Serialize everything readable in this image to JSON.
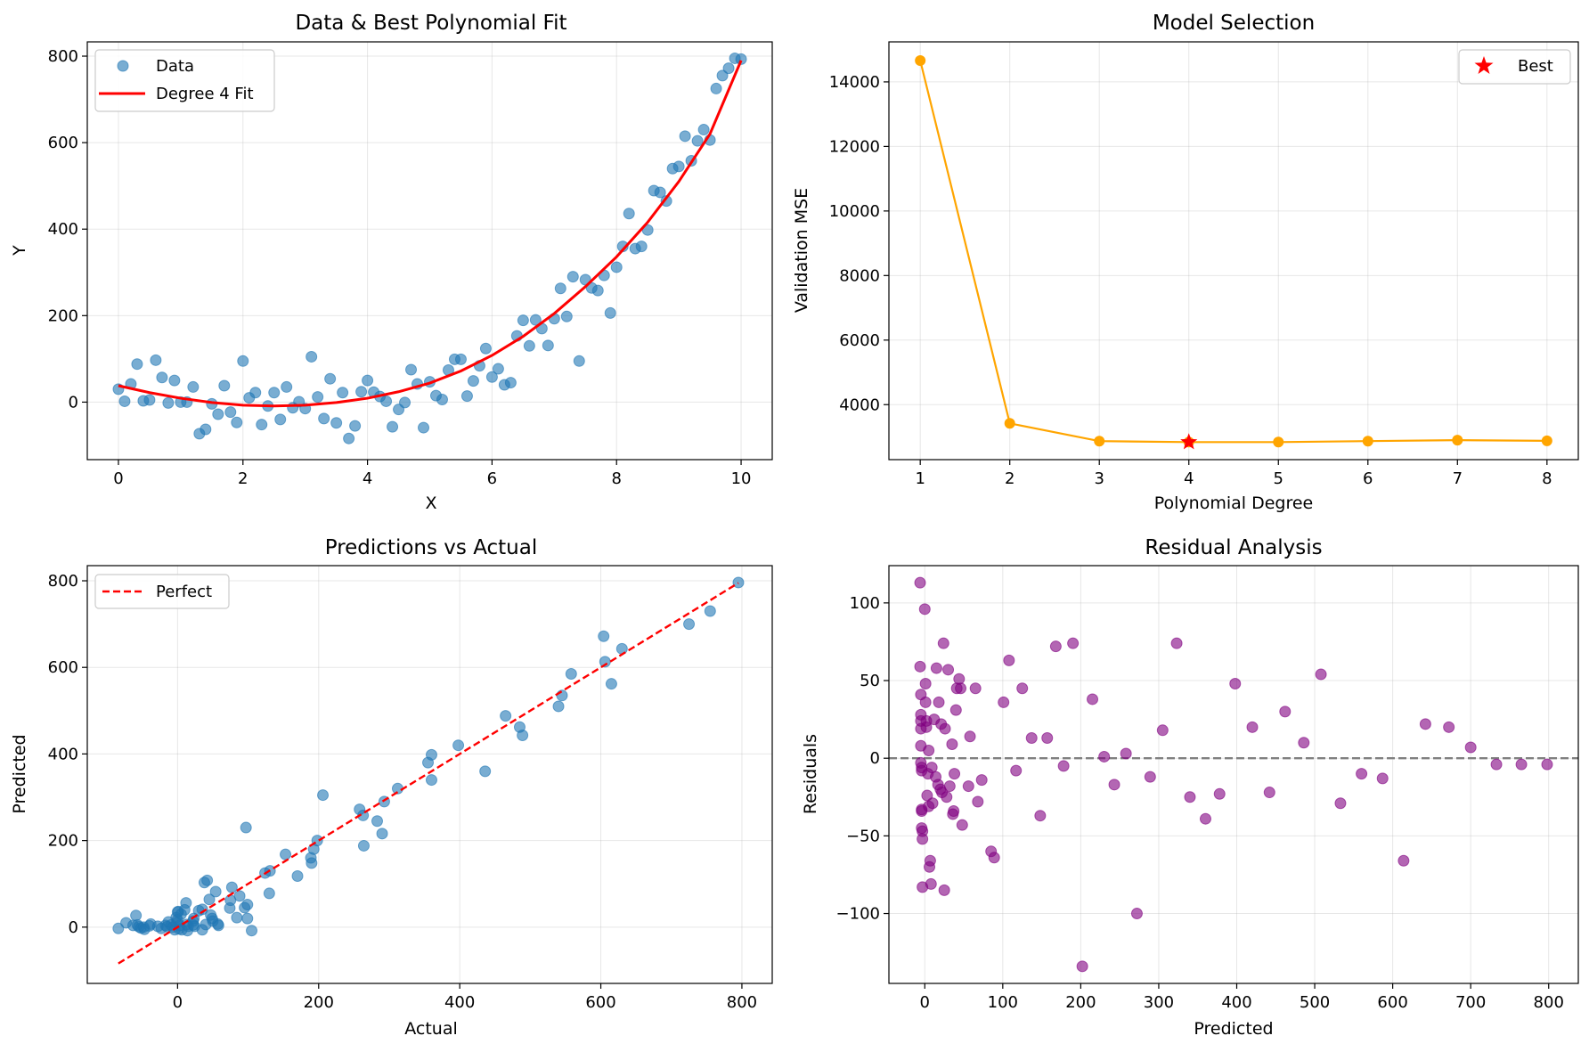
{
  "chart_data": [
    {
      "type": "scatter",
      "title": "Data & Best Polynomial Fit",
      "xlabel": "X",
      "ylabel": "Y",
      "xlim": [
        -0.5,
        10.5
      ],
      "ylim": [
        -133,
        833
      ],
      "xticks": [
        0,
        2,
        4,
        6,
        8,
        10
      ],
      "yticks": [
        0,
        200,
        400,
        600,
        800
      ],
      "grid": true,
      "legend": "upper-left",
      "series": [
        {
          "name": "Data",
          "type": "scatter",
          "color": "#1f77b4",
          "x": [
            0,
            0.1,
            0.2,
            0.3,
            0.4,
            0.5,
            0.6,
            0.7,
            0.8,
            0.9,
            1.0,
            1.1,
            1.2,
            1.3,
            1.4,
            1.5,
            1.6,
            1.7,
            1.8,
            1.9,
            2.0,
            2.1,
            2.2,
            2.3,
            2.4,
            2.5,
            2.6,
            2.7,
            2.8,
            2.9,
            3.0,
            3.1,
            3.2,
            3.3,
            3.4,
            3.5,
            3.6,
            3.7,
            3.8,
            3.9,
            4.0,
            4.1,
            4.2,
            4.3,
            4.4,
            4.5,
            4.6,
            4.7,
            4.8,
            4.9,
            5.0,
            5.1,
            5.2,
            5.3,
            5.4,
            5.5,
            5.6,
            5.7,
            5.8,
            5.9,
            6.0,
            6.1,
            6.2,
            6.3,
            6.4,
            6.5,
            6.6,
            6.7,
            6.8,
            6.9,
            7.0,
            7.1,
            7.2,
            7.3,
            7.4,
            7.5,
            7.6,
            7.7,
            7.8,
            7.9,
            8.0,
            8.1,
            8.2,
            8.3,
            8.4,
            8.5,
            8.6,
            8.7,
            8.8,
            8.9,
            9.0,
            9.1,
            9.2,
            9.3,
            9.4,
            9.5,
            9.6,
            9.7,
            9.8,
            9.9,
            10.0
          ],
          "y": [
            30,
            2,
            42,
            88,
            3,
            5,
            97,
            57,
            -2,
            50,
            0,
            0,
            35,
            -73,
            -63,
            -4,
            -28,
            38,
            -23,
            -47,
            95,
            10,
            22,
            -52,
            -9,
            22,
            -40,
            35,
            -13,
            1,
            -15,
            105,
            12,
            -38,
            54,
            -48,
            22,
            -84,
            -55,
            24,
            50,
            23,
            13,
            2,
            -57,
            -17,
            -1,
            75,
            42,
            -59,
            47,
            15,
            6,
            74,
            99,
            99,
            14,
            49,
            84,
            124,
            58,
            77,
            40,
            45,
            153,
            189,
            130,
            190,
            170,
            131,
            193,
            263,
            198,
            290,
            95,
            283,
            264,
            258,
            293,
            206,
            312,
            360,
            436,
            355,
            360,
            398,
            489,
            485,
            465,
            540,
            545,
            615,
            558,
            604,
            630,
            606,
            725,
            755,
            772,
            795,
            793
          ]
        },
        {
          "name": "Degree 4 Fit",
          "type": "line",
          "color": "#ff0000",
          "x": [
            0,
            0.5,
            1,
            1.5,
            2,
            2.5,
            3,
            3.5,
            4,
            4.5,
            5,
            5.5,
            6,
            6.5,
            7,
            7.5,
            8,
            8.5,
            9,
            9.5,
            10
          ],
          "y": [
            38,
            22,
            9,
            -1,
            -7,
            -9,
            -7,
            -1,
            9,
            24,
            44,
            72,
            108,
            152,
            205,
            267,
            336,
            416,
            510,
            620,
            790
          ]
        }
      ]
    },
    {
      "type": "line",
      "title": "Model Selection",
      "xlabel": "Polynomial Degree",
      "ylabel": "Validation MSE",
      "xlim": [
        0.65,
        8.35
      ],
      "ylim": [
        2296,
        15240
      ],
      "xticks": [
        1,
        2,
        3,
        4,
        5,
        6,
        7,
        8
      ],
      "yticks": [
        4000,
        6000,
        8000,
        10000,
        12000,
        14000
      ],
      "grid": true,
      "legend": "upper-right",
      "series": [
        {
          "name": "",
          "type": "line",
          "color": "#ffa500",
          "x": [
            1,
            2,
            3,
            4,
            5,
            6,
            7,
            8
          ],
          "y": [
            14660,
            3420,
            2870,
            2840,
            2840,
            2870,
            2900,
            2880
          ]
        },
        {
          "name": "Best",
          "type": "star",
          "color": "#ff0000",
          "x": [
            4
          ],
          "y": [
            2840
          ]
        }
      ]
    },
    {
      "type": "scatter",
      "title": "Predictions vs Actual",
      "xlabel": "Actual",
      "ylabel": "Predicted",
      "xlim": [
        -128,
        843
      ],
      "ylim": [
        -130,
        835
      ],
      "xticks": [
        0,
        200,
        400,
        600,
        800
      ],
      "yticks": [
        0,
        200,
        400,
        600,
        800
      ],
      "grid": true,
      "legend": "upper-left",
      "series": [
        {
          "name": "",
          "type": "scatter",
          "color": "#1f77b4",
          "x": [
            -84,
            -73,
            -63,
            -59,
            -57,
            -55,
            -52,
            -48,
            -47,
            -40,
            -38,
            -28,
            -23,
            -17,
            -15,
            -13,
            -9,
            -7,
            -4,
            -2,
            -1,
            0,
            0,
            1,
            2,
            3,
            5,
            6,
            10,
            12,
            13,
            14,
            15,
            22,
            22,
            23,
            24,
            30,
            35,
            35,
            38,
            40,
            42,
            45,
            47,
            49,
            50,
            54,
            57,
            58,
            74,
            75,
            77,
            84,
            88,
            95,
            97,
            99,
            99,
            105,
            124,
            130,
            131,
            153,
            170,
            189,
            190,
            193,
            198,
            206,
            258,
            263,
            264,
            283,
            290,
            293,
            312,
            355,
            360,
            360,
            398,
            436,
            465,
            485,
            489,
            540,
            545,
            558,
            604,
            606,
            615,
            630,
            725,
            755,
            795
          ],
          "y": [
            -3,
            10,
            4,
            27,
            5,
            1,
            -2,
            0,
            -5,
            3,
            7,
            2,
            -3,
            4,
            1,
            12,
            5,
            0,
            -6,
            22,
            10,
            17,
            35,
            36,
            -4,
            4,
            30,
            -6,
            40,
            56,
            6,
            -8,
            2,
            14,
            5,
            20,
            2,
            38,
            41,
            -6,
            103,
            6,
            108,
            64,
            28,
            20,
            14,
            82,
            7,
            4,
            44,
            62,
            92,
            22,
            72,
            45,
            230,
            52,
            20,
            -8,
            125,
            78,
            130,
            168,
            118,
            160,
            148,
            180,
            200,
            305,
            272,
            258,
            188,
            245,
            216,
            290,
            320,
            380,
            398,
            340,
            420,
            360,
            488,
            462,
            443,
            510,
            535,
            585,
            672,
            613,
            562,
            643,
            700,
            730,
            796
          ]
        },
        {
          "name": "Perfect",
          "type": "dashed-line",
          "color": "#ff0000",
          "x": [
            -84,
            795
          ],
          "y": [
            -84,
            795
          ]
        }
      ]
    },
    {
      "type": "scatter",
      "title": "Residual Analysis",
      "xlabel": "Predicted",
      "ylabel": "Residuals",
      "xlim": [
        -46,
        838
      ],
      "ylim": [
        -145,
        124
      ],
      "xticks": [
        0,
        100,
        200,
        300,
        400,
        500,
        600,
        700,
        800
      ],
      "yticks": [
        -100,
        -50,
        0,
        50,
        100
      ],
      "grid": true,
      "legend": "none",
      "reference_line": 0,
      "series": [
        {
          "name": "",
          "type": "scatter",
          "color": "#800080",
          "x": [
            -6,
            -6,
            -5,
            -5,
            -5,
            -5,
            -5,
            -5,
            -4,
            -4,
            -4,
            -4,
            -4,
            -3,
            -3,
            -3,
            0,
            1,
            1,
            2,
            2,
            3,
            4,
            5,
            5,
            6,
            7,
            8,
            9,
            10,
            12,
            14,
            15,
            17,
            18,
            20,
            21,
            22,
            24,
            25,
            26,
            28,
            30,
            32,
            35,
            36,
            37,
            38,
            40,
            41,
            44,
            46,
            48,
            56,
            58,
            65,
            68,
            73,
            85,
            89,
            101,
            108,
            117,
            125,
            137,
            148,
            157,
            168,
            178,
            190,
            202,
            215,
            230,
            243,
            258,
            272,
            289,
            305,
            323,
            340,
            360,
            378,
            398,
            420,
            442,
            462,
            486,
            508,
            533,
            560,
            587,
            614,
            642,
            672,
            700,
            733,
            765,
            798
          ],
          "y": [
            113,
            59,
            41,
            28,
            24,
            19,
            8,
            -3,
            -6,
            -8,
            -33,
            -34,
            -45,
            -47,
            -52,
            -83,
            96,
            48,
            36,
            24,
            20,
            -24,
            -10,
            -31,
            5,
            -70,
            -66,
            -81,
            -6,
            -29,
            25,
            -12,
            58,
            -17,
            36,
            -20,
            22,
            -22,
            74,
            -85,
            19,
            -25,
            57,
            -18,
            9,
            -36,
            -34,
            -10,
            31,
            45,
            51,
            45,
            -43,
            -18,
            14,
            45,
            -28,
            -14,
            -60,
            -64,
            36,
            63,
            -8,
            45,
            13,
            -37,
            13,
            72,
            -5,
            74,
            -134,
            38,
            1,
            -17,
            3,
            -100,
            -12,
            18,
            74,
            -25,
            -39,
            -23,
            48,
            20,
            -22,
            30,
            10,
            54,
            -29,
            -10,
            -13,
            -66,
            22,
            20,
            7,
            -4,
            -4,
            -4
          ]
        }
      ]
    }
  ]
}
